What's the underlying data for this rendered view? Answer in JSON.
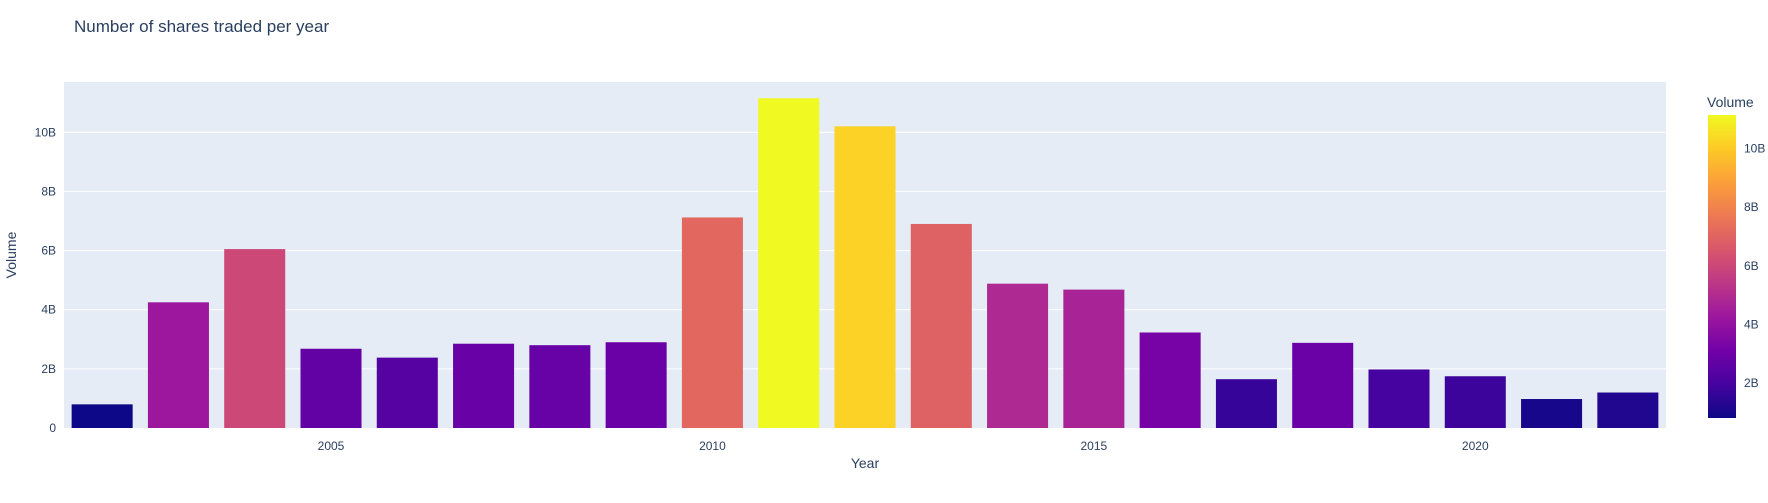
{
  "chart_data": {
    "type": "bar",
    "title": "Number of shares traded per year",
    "xlabel": "Year",
    "ylabel": "Volume",
    "x": [
      2002,
      2003,
      2004,
      2005,
      2006,
      2007,
      2008,
      2009,
      2010,
      2011,
      2012,
      2013,
      2014,
      2015,
      2016,
      2017,
      2018,
      2019,
      2020,
      2021,
      2022
    ],
    "values": [
      800000000,
      4250000000,
      6050000000,
      2680000000,
      2380000000,
      2850000000,
      2800000000,
      2900000000,
      7120000000,
      11150000000,
      10200000000,
      6900000000,
      4880000000,
      4680000000,
      3230000000,
      1650000000,
      2880000000,
      1980000000,
      1750000000,
      980000000,
      1200000000
    ],
    "ylim": [
      0,
      11700000000
    ],
    "xticks": [
      "2005",
      "2010",
      "2015",
      "2020"
    ],
    "yticks": [
      "0",
      "2B",
      "4B",
      "6B",
      "8B",
      "10B"
    ],
    "grid": true,
    "colorbar": {
      "title": "Volume",
      "ticks": [
        "2B",
        "4B",
        "6B",
        "8B",
        "10B"
      ],
      "range": [
        800000000,
        11150000000
      ],
      "colorscale": [
        "#0d0887",
        "#46039f",
        "#7201a8",
        "#9c179e",
        "#bd3786",
        "#d8576b",
        "#ed7953",
        "#fb9f3a",
        "#fdca26",
        "#f0f921"
      ]
    },
    "colors": {
      "plot_bg": "#e5ecf6",
      "grid": "#ffffff",
      "text": "#2a3f5f"
    }
  }
}
